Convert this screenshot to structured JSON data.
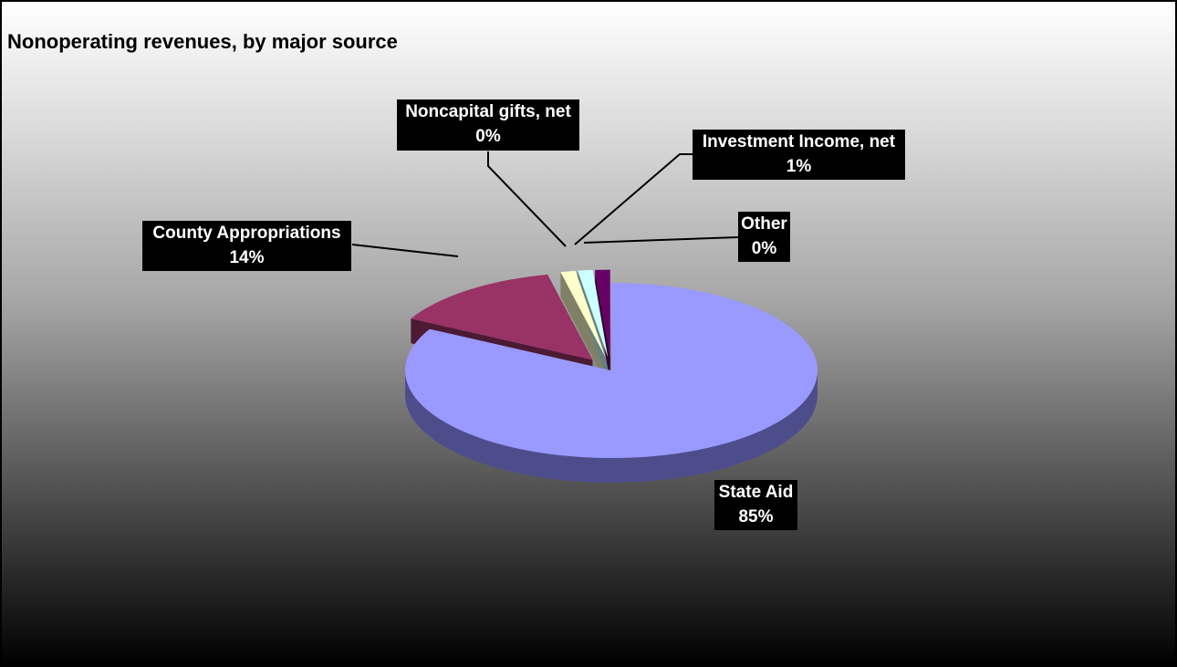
{
  "chart_data": {
    "type": "pie",
    "title": "Nonoperating revenues, by major source",
    "slices": [
      {
        "label": "State Aid",
        "value": 85,
        "pct_label": "85%",
        "color": "#9999ff",
        "side_color": "#4d4d8c"
      },
      {
        "label": "County Appropriations",
        "value": 14,
        "pct_label": "14%",
        "color": "#993366",
        "side_color": "#4d1a33"
      },
      {
        "label": "Noncapital gifts, net",
        "value": 0,
        "pct_label": "0%",
        "color": "#ffffcc",
        "side_color": "#808066"
      },
      {
        "label": "Investment Income, net",
        "value": 1,
        "pct_label": "1%",
        "color": "#ccffff",
        "side_color": "#668080"
      },
      {
        "label": "Other",
        "value": 0,
        "pct_label": "0%",
        "color": "#660066",
        "side_color": "#330033"
      }
    ],
    "style": "3d-exploded",
    "legend": "none"
  }
}
